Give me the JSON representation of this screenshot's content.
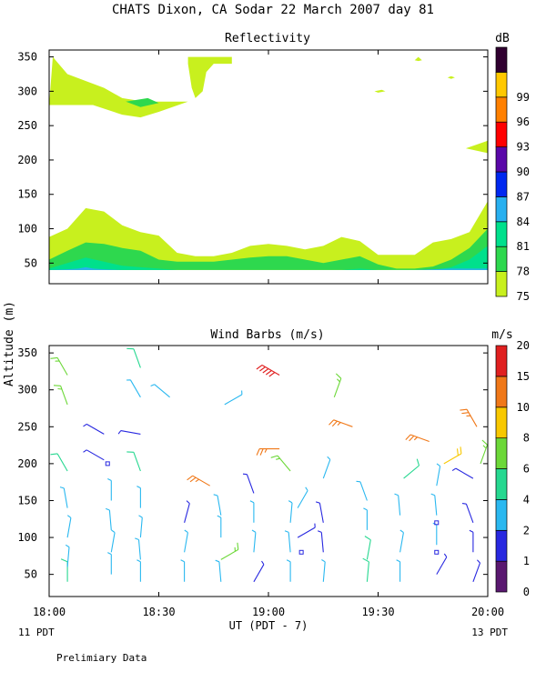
{
  "title": "CHATS Dixon, CA  Sodar  22 March 2007  day  81",
  "y_label": "Altitude (m)",
  "x_label": "UT  (PDT - 7)",
  "x_ticks": [
    "18:00",
    "18:30",
    "19:00",
    "19:30",
    "20:00"
  ],
  "x_tick_values": [
    0,
    30,
    60,
    90,
    120
  ],
  "left_note": "11 PDT",
  "right_note": "13 PDT",
  "footer": "Prelimiary Data",
  "colors": {
    "levels": [
      "#c8f01e",
      "#2ed84e",
      "#00e08c",
      "#28b0f0",
      "#0028f0",
      "#5a08a8",
      "#ff0000",
      "#ff8000",
      "#ffc800",
      "#300030"
    ],
    "wind": [
      "#5a1870",
      "#2828e0",
      "#2ab8f0",
      "#26d890",
      "#6cd838",
      "#f8c800",
      "#f07818",
      "#e02020"
    ]
  },
  "chart_data": [
    {
      "type": "contour",
      "title": "Reflectivity",
      "xlim": [
        0,
        120
      ],
      "ylim": [
        20,
        360
      ],
      "y_ticks": [
        50,
        100,
        150,
        200,
        250,
        300,
        350
      ],
      "colorbar_unit": "dB",
      "colorbar_labels": [
        "75",
        "78",
        "81",
        "84",
        "87",
        "90",
        "93",
        "96",
        "99"
      ],
      "bands": [
        {
          "level": "75",
          "x": [
            0,
            5,
            10,
            15,
            20,
            25,
            30,
            35,
            40,
            45,
            50,
            55,
            60,
            65,
            70,
            75,
            80,
            85,
            90,
            95,
            100,
            105,
            110,
            115,
            120
          ],
          "y": [
            88,
            100,
            130,
            125,
            105,
            95,
            90,
            65,
            60,
            60,
            65,
            75,
            78,
            75,
            70,
            75,
            88,
            82,
            62,
            62,
            62,
            80,
            85,
            95,
            140
          ]
        },
        {
          "level": "78",
          "x": [
            0,
            5,
            10,
            15,
            20,
            25,
            30,
            35,
            40,
            45,
            50,
            55,
            60,
            65,
            70,
            75,
            80,
            85,
            90,
            95,
            100,
            105,
            110,
            115,
            120
          ],
          "y": [
            55,
            68,
            80,
            78,
            72,
            68,
            55,
            52,
            52,
            52,
            55,
            58,
            60,
            60,
            55,
            50,
            55,
            60,
            48,
            42,
            42,
            45,
            55,
            72,
            100
          ]
        },
        {
          "level": "81",
          "x": [
            0,
            5,
            10,
            15,
            20,
            25,
            30,
            35,
            40,
            45,
            50,
            55,
            60,
            65,
            70,
            75,
            80,
            85,
            90,
            95,
            100,
            105,
            110,
            115,
            120
          ],
          "y": [
            42,
            50,
            58,
            52,
            46,
            44,
            42,
            40,
            40,
            40,
            40,
            40,
            40,
            40,
            40,
            40,
            40,
            42,
            40,
            40,
            40,
            40,
            44,
            55,
            75
          ]
        },
        {
          "level": "84",
          "x": [
            0,
            5,
            8,
            10,
            12,
            15,
            20
          ],
          "y": [
            40,
            41,
            42,
            44,
            42,
            41,
            40
          ]
        },
        {
          "level": "84",
          "x": [
            100,
            105,
            110,
            115,
            120
          ],
          "y": [
            40,
            41,
            42,
            42,
            42
          ]
        }
      ],
      "patches": [
        {
          "level": "75",
          "x": [
            0,
            1,
            5,
            15,
            20,
            26,
            38,
            30,
            25,
            20,
            12,
            3,
            0
          ],
          "y": [
            280,
            350,
            325,
            305,
            290,
            285,
            285,
            270,
            262,
            266,
            280,
            280,
            280
          ]
        },
        {
          "level": "78",
          "x": [
            21,
            27,
            30,
            25,
            21
          ],
          "y": [
            285,
            290,
            283,
            277,
            285
          ]
        },
        {
          "level": "75",
          "x": [
            38,
            50,
            50,
            45,
            43,
            42,
            40,
            39,
            38
          ],
          "y": [
            350,
            350,
            340,
            340,
            328,
            300,
            290,
            305,
            340
          ]
        },
        {
          "level": "75",
          "x": [
            89,
            91,
            92,
            90,
            89
          ],
          "y": [
            300,
            302,
            300,
            298,
            300
          ]
        },
        {
          "level": "75",
          "x": [
            100,
            101,
            102,
            101,
            100
          ],
          "y": [
            345,
            350,
            345,
            344,
            345
          ]
        },
        {
          "level": "75",
          "x": [
            109,
            110,
            111,
            110,
            109
          ],
          "y": [
            320,
            322,
            320,
            318,
            320
          ]
        },
        {
          "level": "75",
          "x": [
            114,
            120,
            120,
            114
          ],
          "y": [
            217,
            228,
            210,
            217
          ]
        }
      ]
    },
    {
      "type": "wind_barbs",
      "title": "Wind Barbs (m/s)",
      "xlim": [
        0,
        120
      ],
      "ylim": [
        20,
        360
      ],
      "y_ticks": [
        50,
        100,
        150,
        200,
        250,
        300,
        350
      ],
      "colorbar_unit": "m/s",
      "colorbar_labels": [
        "0",
        "1",
        "2",
        "4",
        "6",
        "8",
        "10",
        "15",
        "20"
      ],
      "barbs": [
        {
          "t": 5,
          "alt": 40,
          "speed": 4,
          "dir": 0
        },
        {
          "t": 5,
          "alt": 60,
          "speed": 3,
          "dir": 5
        },
        {
          "t": 5,
          "alt": 100,
          "speed": 2,
          "dir": 10
        },
        {
          "t": 5,
          "alt": 140,
          "speed": 2,
          "dir": 350
        },
        {
          "t": 5,
          "alt": 190,
          "speed": 5,
          "dir": 330
        },
        {
          "t": 5,
          "alt": 280,
          "speed": 6,
          "dir": 340
        },
        {
          "t": 5,
          "alt": 320,
          "speed": 6,
          "dir": 330
        },
        {
          "t": 15,
          "alt": 240,
          "speed": 1,
          "dir": 300
        },
        {
          "t": 15,
          "alt": 205,
          "speed": 1,
          "dir": 300
        },
        {
          "t": 17,
          "alt": 50,
          "speed": 2,
          "dir": 0
        },
        {
          "t": 17,
          "alt": 80,
          "speed": 2,
          "dir": 10
        },
        {
          "t": 17,
          "alt": 110,
          "speed": 2,
          "dir": 355
        },
        {
          "t": 17,
          "alt": 150,
          "speed": 2,
          "dir": 0
        },
        {
          "t": 25,
          "alt": 40,
          "speed": 2,
          "dir": 0
        },
        {
          "t": 25,
          "alt": 70,
          "speed": 2,
          "dir": 355
        },
        {
          "t": 25,
          "alt": 100,
          "speed": 2,
          "dir": 5
        },
        {
          "t": 25,
          "alt": 140,
          "speed": 3,
          "dir": 0
        },
        {
          "t": 25,
          "alt": 190,
          "speed": 4,
          "dir": 340
        },
        {
          "t": 25,
          "alt": 240,
          "speed": 1,
          "dir": 280
        },
        {
          "t": 25,
          "alt": 290,
          "speed": 3,
          "dir": 330
        },
        {
          "t": 25,
          "alt": 330,
          "speed": 4,
          "dir": 340
        },
        {
          "t": 33,
          "alt": 290,
          "speed": 3,
          "dir": 310
        },
        {
          "t": 37,
          "alt": 40,
          "speed": 2,
          "dir": 0
        },
        {
          "t": 37,
          "alt": 80,
          "speed": 2,
          "dir": 10
        },
        {
          "t": 37,
          "alt": 120,
          "speed": 1,
          "dir": 15
        },
        {
          "t": 44,
          "alt": 170,
          "speed": 10,
          "dir": 300
        },
        {
          "t": 47,
          "alt": 40,
          "speed": 2,
          "dir": 355
        },
        {
          "t": 47,
          "alt": 70,
          "speed": 6,
          "dir": 60
        },
        {
          "t": 47,
          "alt": 100,
          "speed": 2,
          "dir": 0
        },
        {
          "t": 47,
          "alt": 130,
          "speed": 2,
          "dir": 350
        },
        {
          "t": 48,
          "alt": 280,
          "speed": 2,
          "dir": 60
        },
        {
          "t": 56,
          "alt": 40,
          "speed": 1,
          "dir": 30
        },
        {
          "t": 56,
          "alt": 80,
          "speed": 2,
          "dir": 5
        },
        {
          "t": 56,
          "alt": 120,
          "speed": 2,
          "dir": 0
        },
        {
          "t": 56,
          "alt": 160,
          "speed": 1,
          "dir": 340
        },
        {
          "t": 63,
          "alt": 320,
          "speed": 20,
          "dir": 300
        },
        {
          "t": 63,
          "alt": 220,
          "speed": 10,
          "dir": 270
        },
        {
          "t": 66,
          "alt": 40,
          "speed": 2,
          "dir": 0
        },
        {
          "t": 66,
          "alt": 80,
          "speed": 2,
          "dir": 355
        },
        {
          "t": 66,
          "alt": 120,
          "speed": 2,
          "dir": 5
        },
        {
          "t": 66,
          "alt": 190,
          "speed": 6,
          "dir": 320
        },
        {
          "t": 68,
          "alt": 100,
          "speed": 1,
          "dir": 60
        },
        {
          "t": 68,
          "alt": 140,
          "speed": 2,
          "dir": 30
        },
        {
          "t": 75,
          "alt": 40,
          "speed": 2,
          "dir": 5
        },
        {
          "t": 75,
          "alt": 80,
          "speed": 1,
          "dir": 355
        },
        {
          "t": 75,
          "alt": 120,
          "speed": 1,
          "dir": 350
        },
        {
          "t": 75,
          "alt": 180,
          "speed": 2,
          "dir": 20
        },
        {
          "t": 78,
          "alt": 290,
          "speed": 6,
          "dir": 20
        },
        {
          "t": 83,
          "alt": 250,
          "speed": 10,
          "dir": 290
        },
        {
          "t": 87,
          "alt": 40,
          "speed": 4,
          "dir": 5
        },
        {
          "t": 87,
          "alt": 70,
          "speed": 4,
          "dir": 10
        },
        {
          "t": 87,
          "alt": 110,
          "speed": 2,
          "dir": 0
        },
        {
          "t": 87,
          "alt": 150,
          "speed": 2,
          "dir": 340
        },
        {
          "t": 96,
          "alt": 40,
          "speed": 2,
          "dir": 0
        },
        {
          "t": 96,
          "alt": 80,
          "speed": 2,
          "dir": 10
        },
        {
          "t": 96,
          "alt": 130,
          "speed": 2,
          "dir": 355
        },
        {
          "t": 97,
          "alt": 180,
          "speed": 4,
          "dir": 50
        },
        {
          "t": 104,
          "alt": 230,
          "speed": 10,
          "dir": 290
        },
        {
          "t": 106,
          "alt": 50,
          "speed": 1,
          "dir": 30
        },
        {
          "t": 106,
          "alt": 90,
          "speed": 2,
          "dir": 0
        },
        {
          "t": 106,
          "alt": 130,
          "speed": 2,
          "dir": 355
        },
        {
          "t": 106,
          "alt": 170,
          "speed": 2,
          "dir": 10
        },
        {
          "t": 108,
          "alt": 200,
          "speed": 8,
          "dir": 60
        },
        {
          "t": 116,
          "alt": 40,
          "speed": 1,
          "dir": 20
        },
        {
          "t": 116,
          "alt": 80,
          "speed": 1,
          "dir": 0
        },
        {
          "t": 116,
          "alt": 120,
          "speed": 1,
          "dir": 340
        },
        {
          "t": 116,
          "alt": 180,
          "speed": 1,
          "dir": 300
        },
        {
          "t": 117,
          "alt": 250,
          "speed": 10,
          "dir": 330
        },
        {
          "t": 118,
          "alt": 200,
          "speed": 6,
          "dir": 20
        }
      ],
      "calm_points": [
        {
          "t": 16,
          "alt": 200,
          "speed": 1
        },
        {
          "t": 69,
          "alt": 80,
          "speed": 1
        },
        {
          "t": 106,
          "alt": 120,
          "speed": 1
        },
        {
          "t": 106,
          "alt": 80,
          "speed": 1
        }
      ]
    }
  ]
}
